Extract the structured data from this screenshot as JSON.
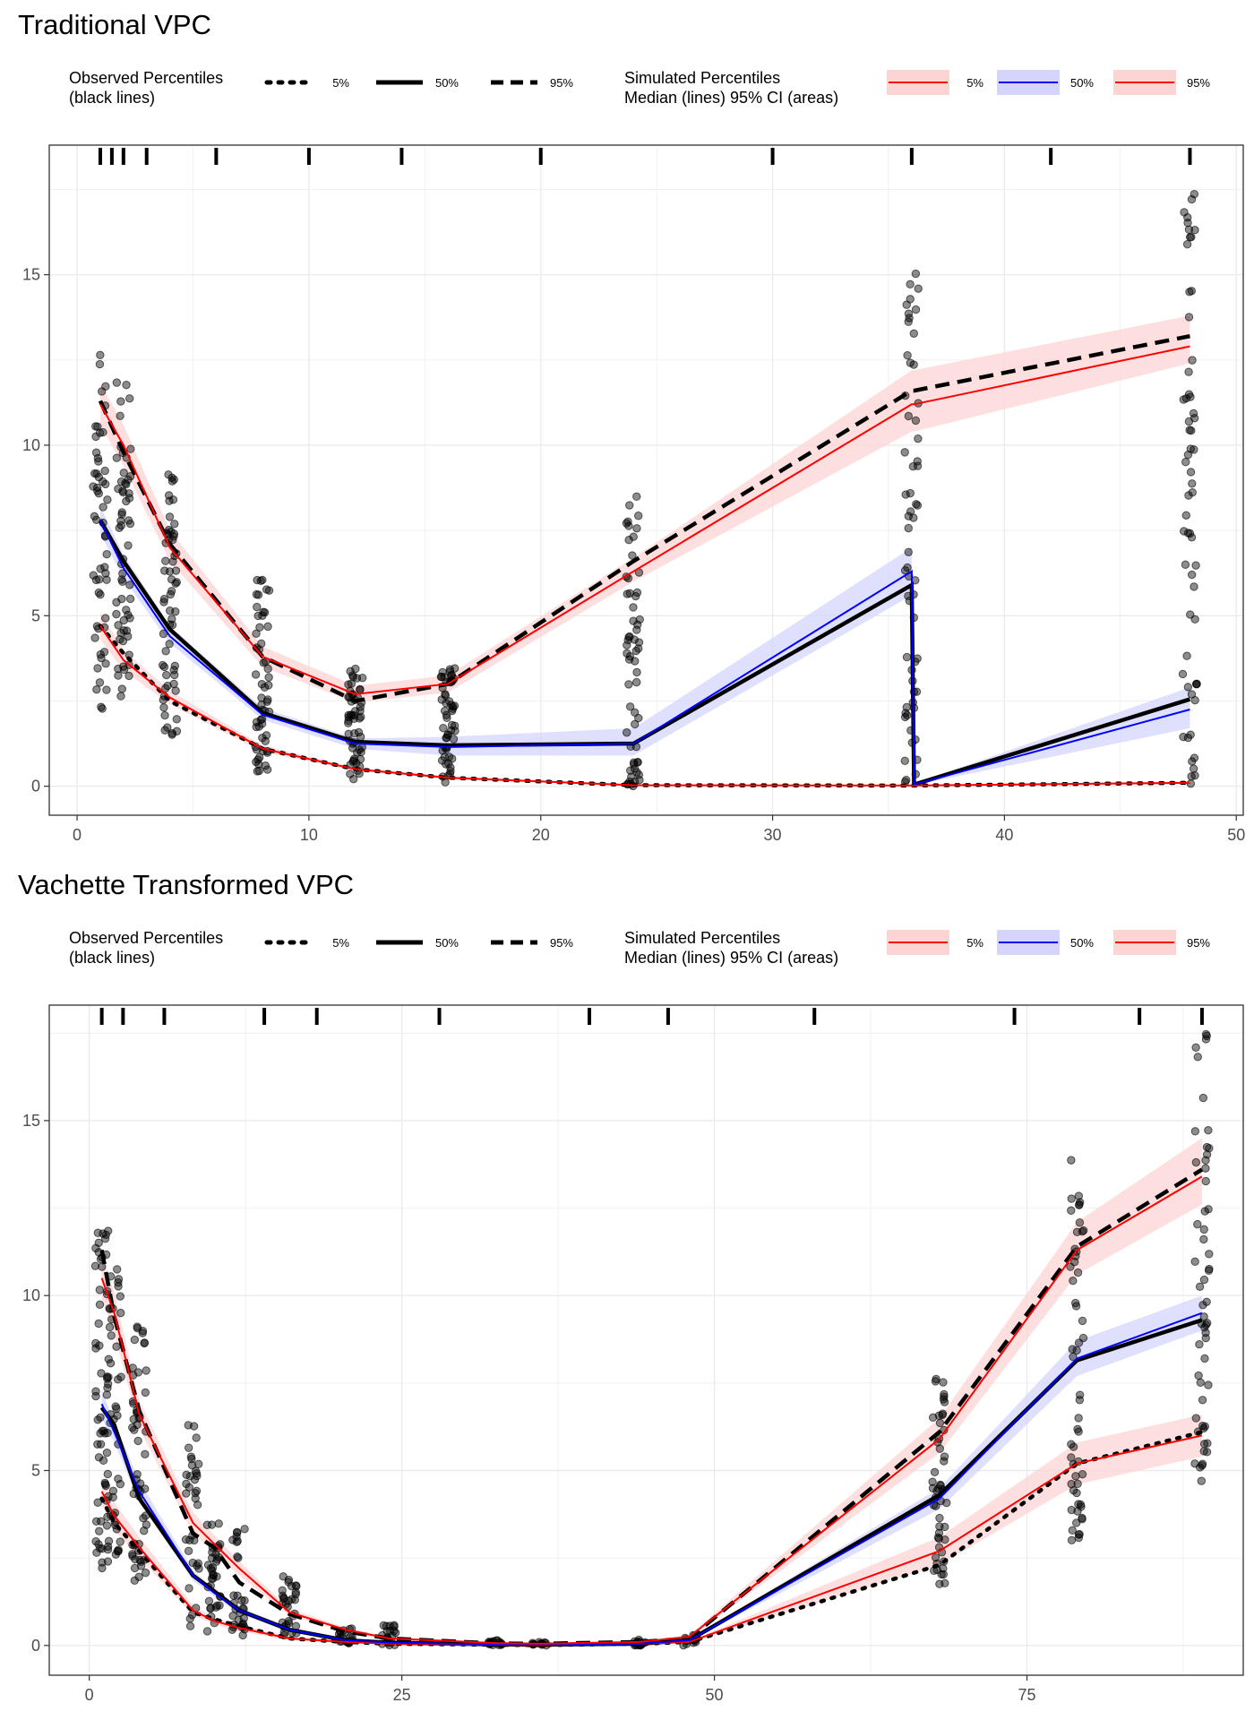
{
  "legend": {
    "observed_title": [
      "Observed Percentiles",
      "(black lines)"
    ],
    "observed_keys": [
      "5%",
      "50%",
      "95%"
    ],
    "simulated_title": [
      "Simulated Percentiles",
      "Median (lines) 95% CI (areas)"
    ],
    "simulated_keys": [
      "5%",
      "50%",
      "95%"
    ],
    "colors": {
      "sim_low": "#ff0000",
      "sim_median": "#0000ff",
      "sim_high": "#ff0000",
      "ci_red": "#fdd4d4",
      "ci_blue": "#d4d4fd",
      "observed": "#000000"
    }
  },
  "chart_data": [
    {
      "type": "line",
      "title": "Traditional VPC",
      "xlabel": "",
      "ylabel": "",
      "xlim": [
        -1.2,
        50.3
      ],
      "ylim": [
        -0.85,
        18.8
      ],
      "xticks": [
        0,
        10,
        20,
        30,
        40,
        50
      ],
      "yticks": [
        0,
        5,
        10,
        15
      ],
      "grid": true,
      "bin_marks": [
        1,
        1.5,
        2,
        3,
        6,
        10,
        14,
        20,
        30,
        36,
        42,
        48
      ],
      "x": [
        1,
        2,
        4,
        8,
        12,
        16,
        24,
        36,
        36.1,
        48
      ],
      "series": [
        {
          "name": "Observed 5%",
          "style": "dotted",
          "values": [
            4.7,
            3.9,
            2.5,
            1.1,
            0.5,
            0.25,
            0.03,
            0.02,
            0.02,
            0.1
          ]
        },
        {
          "name": "Observed 50%",
          "style": "solid",
          "values": [
            7.8,
            6.6,
            4.6,
            2.15,
            1.3,
            1.2,
            1.25,
            5.9,
            0.05,
            2.55
          ]
        },
        {
          "name": "Observed 95%",
          "style": "dashed",
          "values": [
            11.3,
            9.8,
            7.1,
            3.8,
            2.5,
            3.0,
            6.6,
            11.6,
            11.6,
            13.2
          ]
        },
        {
          "name": "Simulated 5% median",
          "color": "#ff0000",
          "values": [
            4.7,
            3.7,
            2.6,
            1.1,
            0.5,
            0.25,
            0.03,
            0.02,
            0.02,
            0.1
          ]
        },
        {
          "name": "Simulated 50% median",
          "color": "#0000ff",
          "values": [
            7.8,
            6.4,
            4.4,
            2.1,
            1.25,
            1.15,
            1.25,
            6.3,
            0.05,
            2.25
          ]
        },
        {
          "name": "Simulated 95% median",
          "color": "#ff0000",
          "values": [
            11.2,
            10.0,
            7.0,
            3.8,
            2.7,
            3.0,
            6.3,
            11.2,
            11.2,
            12.9
          ]
        }
      ],
      "ci_bands": [
        {
          "color": "#fdd4d4",
          "lower": [
            4.3,
            3.4,
            2.4,
            1.0,
            0.45,
            0.2,
            0.02,
            0.01,
            0.01,
            0.05
          ],
          "upper": [
            5.1,
            4.0,
            2.8,
            1.2,
            0.55,
            0.3,
            0.05,
            0.04,
            0.04,
            0.15
          ]
        },
        {
          "color": "#d4d4fd",
          "lower": [
            7.4,
            6.1,
            4.2,
            1.95,
            1.1,
            0.9,
            0.9,
            5.6,
            0.03,
            1.7
          ],
          "upper": [
            8.2,
            6.8,
            4.7,
            2.3,
            1.4,
            1.45,
            1.7,
            7.0,
            0.08,
            2.9
          ]
        },
        {
          "color": "#fdd4d4",
          "lower": [
            10.6,
            9.4,
            6.6,
            3.5,
            2.45,
            2.75,
            6.0,
            10.4,
            10.4,
            12.4
          ],
          "upper": [
            11.8,
            10.6,
            7.5,
            4.1,
            2.95,
            3.25,
            6.7,
            12.2,
            12.2,
            13.8
          ]
        }
      ],
      "observations": [
        {
          "x": 1,
          "min": 2.2,
          "max": 12.7,
          "n": 55
        },
        {
          "x": 2,
          "min": 2.6,
          "max": 12.1,
          "n": 60
        },
        {
          "x": 4,
          "min": 1.4,
          "max": 9.2,
          "n": 60
        },
        {
          "x": 8,
          "min": 0.4,
          "max": 6.3,
          "n": 55
        },
        {
          "x": 12,
          "min": 0.2,
          "max": 3.6,
          "n": 55
        },
        {
          "x": 16,
          "min": 0.1,
          "max": 3.5,
          "n": 55
        },
        {
          "x": 24,
          "min": 0.0,
          "max": 8.8,
          "n": 60
        },
        {
          "x": 36,
          "min": 0.0,
          "max": 15.1,
          "n": 60
        },
        {
          "x": 48,
          "min": 0.0,
          "max": 18.1,
          "n": 60
        }
      ]
    },
    {
      "type": "line",
      "title": "Vachette Transformed VPC",
      "xlabel": "",
      "ylabel": "",
      "xlim": [
        -3.2,
        92.3
      ],
      "ylim": [
        -0.85,
        18.3
      ],
      "xticks": [
        0,
        25,
        50,
        75
      ],
      "yticks": [
        0,
        5,
        10,
        15
      ],
      "grid": true,
      "bin_marks": [
        1,
        2.7,
        6,
        14,
        18.2,
        28,
        40,
        46.3,
        58,
        74,
        84,
        89
      ],
      "x": [
        1,
        2,
        4,
        8.3,
        10,
        12,
        16,
        20.5,
        24,
        32.5,
        36,
        44,
        48,
        68,
        79,
        89
      ],
      "series": [
        {
          "name": "Observed 5%",
          "style": "dotted",
          "values": [
            4.2,
            3.5,
            2.7,
            0.95,
            0.75,
            0.55,
            0.2,
            0.1,
            0.05,
            0.02,
            0.01,
            0.05,
            0.1,
            2.3,
            5.2,
            6.1
          ]
        },
        {
          "name": "Observed 50%",
          "style": "solid",
          "values": [
            6.8,
            6.3,
            4.2,
            2.0,
            1.55,
            1.0,
            0.45,
            0.15,
            0.08,
            0.03,
            0.02,
            0.05,
            0.15,
            4.3,
            8.15,
            9.3
          ]
        },
        {
          "name": "Observed 95%",
          "style": "dashed",
          "values": [
            11.3,
            9.4,
            6.7,
            3.2,
            2.8,
            1.8,
            0.9,
            0.4,
            0.2,
            0.06,
            0.05,
            0.1,
            0.2,
            6.1,
            11.4,
            13.6
          ]
        },
        {
          "name": "Simulated 5% median",
          "color": "#ff0000",
          "values": [
            4.4,
            3.7,
            2.8,
            1.0,
            0.7,
            0.5,
            0.2,
            0.1,
            0.05,
            0.02,
            0.01,
            0.05,
            0.1,
            2.7,
            5.2,
            6.0
          ]
        },
        {
          "name": "Simulated 50% median",
          "color": "#0000ff",
          "values": [
            6.9,
            6.1,
            4.4,
            2.0,
            1.5,
            1.0,
            0.45,
            0.15,
            0.08,
            0.03,
            0.02,
            0.05,
            0.15,
            4.2,
            8.2,
            9.5
          ]
        },
        {
          "name": "Simulated 95% median",
          "color": "#ff0000",
          "values": [
            10.5,
            9.5,
            6.6,
            3.5,
            2.9,
            2.2,
            0.95,
            0.45,
            0.2,
            0.07,
            0.05,
            0.1,
            0.25,
            5.9,
            11.3,
            13.4
          ]
        }
      ],
      "ci_bands": [
        {
          "color": "#fdd4d4",
          "lower": [
            4.0,
            3.3,
            2.5,
            0.85,
            0.6,
            0.4,
            0.15,
            0.07,
            0.03,
            0.01,
            0.0,
            0.03,
            0.07,
            2.3,
            4.6,
            5.4
          ],
          "upper": [
            4.8,
            4.1,
            3.1,
            1.15,
            0.8,
            0.6,
            0.25,
            0.13,
            0.07,
            0.03,
            0.02,
            0.07,
            0.13,
            3.1,
            5.8,
            6.6
          ]
        },
        {
          "color": "#d4d4fd",
          "lower": [
            6.5,
            5.8,
            4.1,
            1.85,
            1.4,
            0.9,
            0.38,
            0.12,
            0.06,
            0.02,
            0.01,
            0.04,
            0.12,
            3.9,
            7.7,
            9.0
          ],
          "upper": [
            7.3,
            6.4,
            4.7,
            2.15,
            1.6,
            1.1,
            0.52,
            0.18,
            0.1,
            0.04,
            0.03,
            0.06,
            0.18,
            4.5,
            8.7,
            10.0
          ]
        },
        {
          "color": "#fdd4d4",
          "lower": [
            9.9,
            8.9,
            6.2,
            3.2,
            2.65,
            2.0,
            0.85,
            0.38,
            0.16,
            0.05,
            0.04,
            0.08,
            0.2,
            5.5,
            10.6,
            12.6
          ],
          "upper": [
            11.1,
            10.1,
            7.0,
            3.8,
            3.15,
            2.4,
            1.05,
            0.52,
            0.24,
            0.09,
            0.06,
            0.12,
            0.3,
            6.5,
            12.1,
            14.5
          ]
        }
      ],
      "observations": [
        {
          "x": 1,
          "min": 2.2,
          "max": 12.2,
          "n": 55
        },
        {
          "x": 2,
          "min": 2.5,
          "max": 11.3,
          "n": 50
        },
        {
          "x": 4,
          "min": 1.8,
          "max": 9.2,
          "n": 55
        },
        {
          "x": 8.3,
          "min": 0.5,
          "max": 6.3,
          "n": 35
        },
        {
          "x": 10,
          "min": 0.4,
          "max": 3.5,
          "n": 35
        },
        {
          "x": 12,
          "min": 0.2,
          "max": 3.4,
          "n": 30
        },
        {
          "x": 16,
          "min": 0.1,
          "max": 2.1,
          "n": 30
        },
        {
          "x": 20.5,
          "min": 0.05,
          "max": 0.5,
          "n": 20
        },
        {
          "x": 24,
          "min": 0.0,
          "max": 0.6,
          "n": 20
        },
        {
          "x": 32.5,
          "min": 0.0,
          "max": 0.15,
          "n": 15
        },
        {
          "x": 36,
          "min": 0.0,
          "max": 0.1,
          "n": 12
        },
        {
          "x": 44,
          "min": 0.0,
          "max": 0.2,
          "n": 15
        },
        {
          "x": 48,
          "min": 0.0,
          "max": 0.3,
          "n": 15
        },
        {
          "x": 68,
          "min": 1.7,
          "max": 7.7,
          "n": 50
        },
        {
          "x": 79,
          "min": 3.0,
          "max": 14.0,
          "n": 55
        },
        {
          "x": 89,
          "min": 4.7,
          "max": 17.7,
          "n": 55
        }
      ]
    }
  ]
}
